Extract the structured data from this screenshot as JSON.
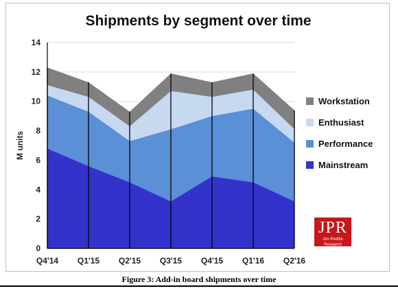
{
  "chart_data": {
    "type": "area",
    "stacked": true,
    "title": "Shipments by segment over time",
    "ylabel": "M units",
    "xlabel": "",
    "categories": [
      "Q4'14",
      "Q1'15",
      "Q2'15",
      "Q3'15",
      "Q4'15",
      "Q1'16",
      "Q2'16"
    ],
    "ylim": [
      0,
      14
    ],
    "yticks": [
      0,
      2,
      4,
      6,
      8,
      10,
      12,
      14
    ],
    "grid": true,
    "legend_position": "right",
    "series": [
      {
        "name": "Mainstream",
        "color": "#3333cc",
        "values": [
          6.8,
          5.6,
          4.5,
          3.2,
          4.9,
          4.5,
          3.2
        ]
      },
      {
        "name": "Performance",
        "color": "#5b8fd6",
        "values": [
          3.6,
          3.7,
          2.8,
          4.9,
          4.1,
          5.0,
          4.0
        ]
      },
      {
        "name": "Enthusiast",
        "color": "#c6d9f1",
        "values": [
          0.7,
          1.0,
          1.0,
          2.6,
          1.3,
          1.3,
          0.9
        ]
      },
      {
        "name": "Workstation",
        "color": "#808080",
        "values": [
          1.2,
          1.0,
          1.0,
          1.2,
          1.0,
          1.1,
          1.3
        ]
      }
    ]
  },
  "logo": {
    "letters": "JPR",
    "subtitle": "Jon Peddie Research"
  },
  "caption": "Figure 3: Add-in board shipments over time"
}
